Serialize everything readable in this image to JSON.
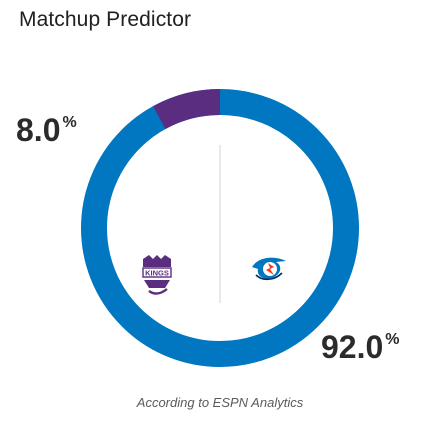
{
  "header": {
    "title": "Matchup Predictor"
  },
  "prediction": {
    "away_team": {
      "name": "Sacramento Kings",
      "logo_text": "KINGS",
      "win_pct": 8.0,
      "win_pct_label": "8.0",
      "color": "#5a2d81"
    },
    "home_team": {
      "name": "Oklahoma City Thunder",
      "win_pct": 92.0,
      "win_pct_label": "92.0",
      "color": "#0077c0"
    },
    "percent_symbol": "%"
  },
  "footer": {
    "note": "According to ESPN Analytics"
  },
  "colors": {
    "ring_primary": "#0077c0",
    "ring_secondary": "#5a2d81",
    "divider": "#d4d4d4"
  }
}
